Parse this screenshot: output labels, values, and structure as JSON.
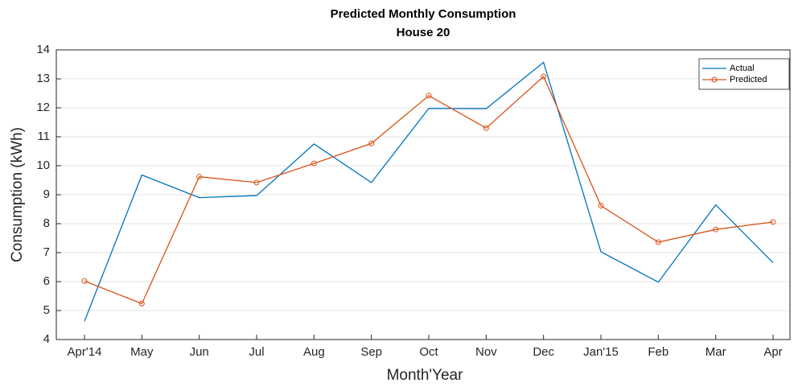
{
  "chart_data": {
    "type": "line",
    "title": "Predicted Monthly Consumption",
    "subtitle": "House 20",
    "x_label": "Month'Year",
    "y_label": "Consumption (kWh)",
    "categories": [
      "Apr'14",
      "May",
      "Jun",
      "Jul",
      "Aug",
      "Sep",
      "Oct",
      "Nov",
      "Dec",
      "Jan'15",
      "Feb",
      "Mar",
      "Apr"
    ],
    "series": [
      {
        "name": "Actual",
        "color": "#0072bd",
        "marker": false,
        "values": [
          4.63,
          9.68,
          8.9,
          8.97,
          10.75,
          9.42,
          11.98,
          11.97,
          13.57,
          7.03,
          5.98,
          8.65,
          6.65
        ]
      },
      {
        "name": "Predicted",
        "color": "#d95319",
        "marker": true,
        "values": [
          6.02,
          5.24,
          9.62,
          9.42,
          10.08,
          10.77,
          12.42,
          11.3,
          13.08,
          8.62,
          7.36,
          7.8,
          8.06
        ]
      }
    ],
    "ylim": [
      4,
      14
    ],
    "yticks": [
      4,
      5,
      6,
      7,
      8,
      9,
      10,
      11,
      12,
      13,
      14
    ],
    "grid": true,
    "legend": "northeast"
  }
}
